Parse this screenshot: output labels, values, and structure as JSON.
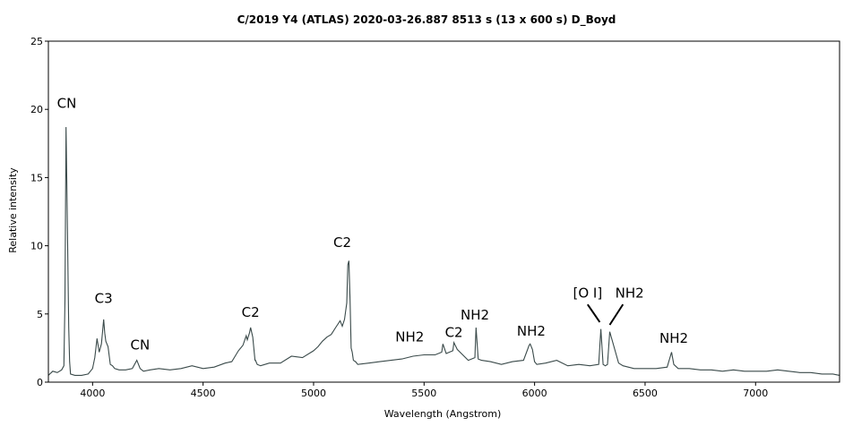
{
  "chart_data": {
    "type": "line",
    "title": "C/2019 Y4 (ATLAS)   2020-03-26.887   8513 s (13 x 600 s)   D_Boyd",
    "xlabel": "Wavelength (Angstrom)",
    "ylabel": "Relative intensity",
    "xlim": [
      3800,
      7380
    ],
    "ylim": [
      0,
      25
    ],
    "xticks": [
      4000,
      4500,
      5000,
      5500,
      6000,
      6500,
      7000
    ],
    "yticks": [
      0,
      5,
      10,
      15,
      20,
      25
    ],
    "grid": false,
    "line_color": "#3a4a4a",
    "series": [
      {
        "x": [
          3800,
          3820,
          3840,
          3860,
          3870,
          3875,
          3880,
          3884,
          3888,
          3892,
          3896,
          3900,
          3920,
          3950,
          3980,
          4000,
          4010,
          4020,
          4030,
          4040,
          4050,
          4055,
          4060,
          4070,
          4080,
          4090,
          4100,
          4120,
          4150,
          4180,
          4200,
          4215,
          4230,
          4260,
          4300,
          4350,
          4400,
          4450,
          4500,
          4550,
          4600,
          4630,
          4660,
          4680,
          4695,
          4700,
          4710,
          4715,
          4725,
          4735,
          4737,
          4745,
          4760,
          4800,
          4850,
          4900,
          4950,
          5000,
          5020,
          5040,
          5060,
          5080,
          5100,
          5120,
          5130,
          5140,
          5150,
          5155,
          5160,
          5165,
          5170,
          5175,
          5180,
          5190,
          5200,
          5250,
          5300,
          5350,
          5400,
          5450,
          5500,
          5550,
          5580,
          5585,
          5600,
          5630,
          5635,
          5650,
          5700,
          5730,
          5735,
          5745,
          5760,
          5800,
          5850,
          5900,
          5950,
          5975,
          5980,
          5990,
          6000,
          6010,
          6050,
          6100,
          6150,
          6200,
          6250,
          6290,
          6300,
          6310,
          6320,
          6330,
          6340,
          6380,
          6400,
          6450,
          6500,
          6550,
          6600,
          6620,
          6630,
          6650,
          6700,
          6750,
          6800,
          6850,
          6900,
          6950,
          7000,
          7050,
          7100,
          7150,
          7200,
          7250,
          7300,
          7350,
          7380
        ],
        "y": [
          0.5,
          0.8,
          0.7,
          0.9,
          1.2,
          6.0,
          18.7,
          14.0,
          9.0,
          4.0,
          1.5,
          0.6,
          0.5,
          0.5,
          0.6,
          1.0,
          1.8,
          3.2,
          2.2,
          2.8,
          4.6,
          3.6,
          3.0,
          2.6,
          1.3,
          1.2,
          1.0,
          0.9,
          0.9,
          1.0,
          1.6,
          1.0,
          0.8,
          0.9,
          1.0,
          0.9,
          1.0,
          1.2,
          1.0,
          1.1,
          1.4,
          1.5,
          2.3,
          2.7,
          3.4,
          3.1,
          3.6,
          4.0,
          3.3,
          1.6,
          1.6,
          1.3,
          1.2,
          1.4,
          1.4,
          1.9,
          1.8,
          2.3,
          2.6,
          3.0,
          3.3,
          3.5,
          4.0,
          4.5,
          4.1,
          4.6,
          5.8,
          8.6,
          8.9,
          6.0,
          2.5,
          2.2,
          1.6,
          1.5,
          1.3,
          1.4,
          1.5,
          1.6,
          1.7,
          1.9,
          2.0,
          2.0,
          2.2,
          2.8,
          2.1,
          2.3,
          2.9,
          2.4,
          1.6,
          1.8,
          4.0,
          1.7,
          1.6,
          1.5,
          1.3,
          1.5,
          1.6,
          2.7,
          2.8,
          2.4,
          1.5,
          1.3,
          1.4,
          1.6,
          1.2,
          1.3,
          1.2,
          1.3,
          3.9,
          1.3,
          1.2,
          1.3,
          3.7,
          1.4,
          1.2,
          1.0,
          1.0,
          1.0,
          1.1,
          2.2,
          1.3,
          1.0,
          1.0,
          0.9,
          0.9,
          0.8,
          0.9,
          0.8,
          0.8,
          0.8,
          0.9,
          0.8,
          0.7,
          0.7,
          0.6,
          0.6,
          0.5
        ]
      }
    ],
    "annotations": [
      {
        "text": "CN",
        "wavelength": 3883,
        "y": 20.1
      },
      {
        "text": "C3",
        "wavelength": 4050,
        "y": 5.8
      },
      {
        "text": "CN",
        "wavelength": 4215,
        "y": 2.4
      },
      {
        "text": "C2",
        "wavelength": 4715,
        "y": 4.8
      },
      {
        "text": "C2",
        "wavelength": 5130,
        "y": 9.9
      },
      {
        "text": "NH2",
        "wavelength": 5435,
        "y": 3.0
      },
      {
        "text": "C2",
        "wavelength": 5635,
        "y": 3.3
      },
      {
        "text": "NH2",
        "wavelength": 5730,
        "y": 4.6
      },
      {
        "text": "NH2",
        "wavelength": 5985,
        "y": 3.4
      },
      {
        "text": "[O I]",
        "wavelength": 6240,
        "y": 6.2
      },
      {
        "text": "NH2",
        "wavelength": 6430,
        "y": 6.2
      },
      {
        "text": "NH2",
        "wavelength": 6630,
        "y": 2.9
      }
    ]
  }
}
